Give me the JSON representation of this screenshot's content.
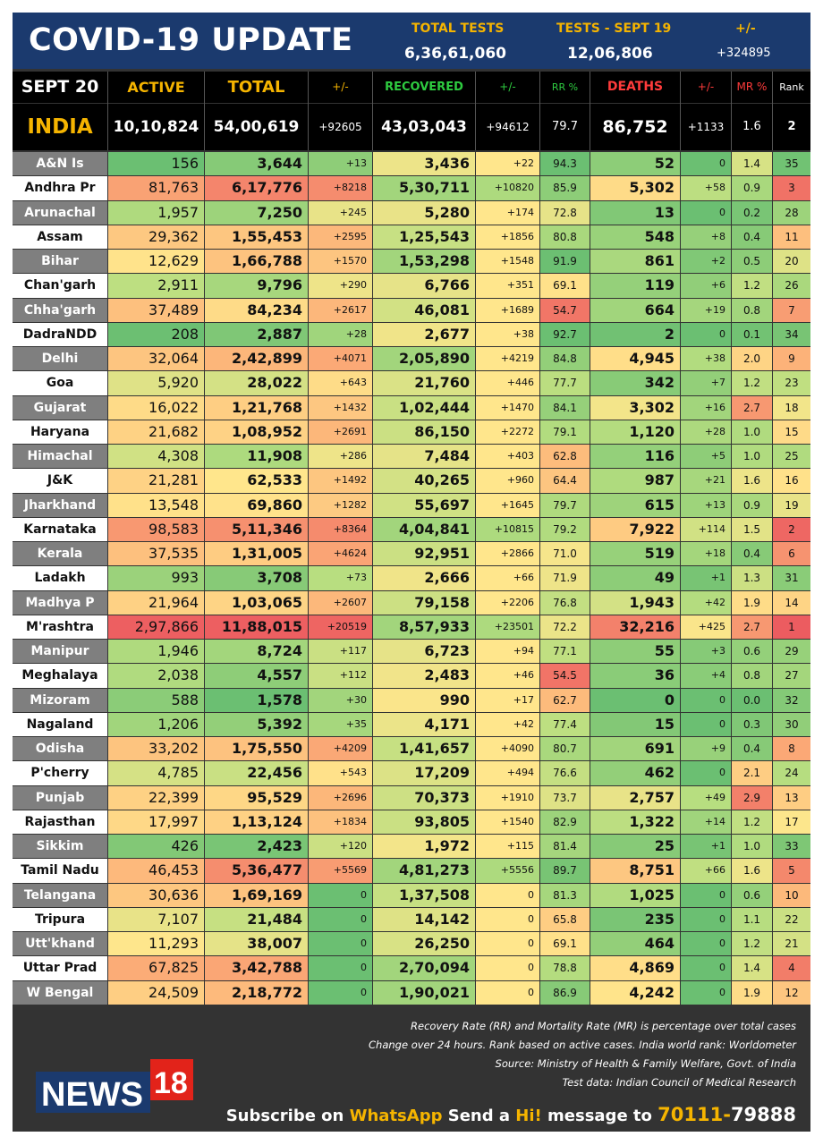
{
  "header": {
    "title": "COVID-19 UPDATE",
    "total_tests_label": "TOTAL TESTS",
    "total_tests_value": "6,36,61,060",
    "tests_day_label": "TESTS - SEPT 19",
    "tests_day_value": "12,06,806",
    "change_label": "+/-",
    "change_value": "+324895"
  },
  "columns": {
    "date": "SEPT 20",
    "active": "ACTIVE",
    "total": "TOTAL",
    "total_change": "+/-",
    "recovered": "RECOVERED",
    "recovered_change": "+/-",
    "rr": "RR %",
    "deaths": "DEATHS",
    "deaths_change": "+/-",
    "mr": "MR %",
    "rank": "Rank"
  },
  "india": {
    "name": "INDIA",
    "active": "10,10,824",
    "total": "54,00,619",
    "total_change": "+92605",
    "recovered": "43,03,043",
    "recovered_change": "+94612",
    "rr": "79.7",
    "deaths": "86,752",
    "deaths_change": "+1133",
    "mr": "1.6",
    "rank": "2"
  },
  "colors": {
    "header_bg": "#1b3a6e",
    "accent_yellow": "#f5b400",
    "green_text": "#2ecc40",
    "red_text": "#ff3b3b",
    "footer_bg": "#333333"
  },
  "states": [
    [
      "A&N Is",
      "156",
      "3,644",
      "+13",
      "3,436",
      "+22",
      "94.3",
      "52",
      "0",
      "1.4",
      "35"
    ],
    [
      "Andhra Pr",
      "81,763",
      "6,17,776",
      "+8218",
      "5,30,711",
      "+10820",
      "85.9",
      "5,302",
      "+58",
      "0.9",
      "3"
    ],
    [
      "Arunachal",
      "1,957",
      "7,250",
      "+245",
      "5,280",
      "+174",
      "72.8",
      "13",
      "0",
      "0.2",
      "28"
    ],
    [
      "Assam",
      "29,362",
      "1,55,453",
      "+2595",
      "1,25,543",
      "+1856",
      "80.8",
      "548",
      "+8",
      "0.4",
      "11"
    ],
    [
      "Bihar",
      "12,629",
      "1,66,788",
      "+1570",
      "1,53,298",
      "+1548",
      "91.9",
      "861",
      "+2",
      "0.5",
      "20"
    ],
    [
      "Chan'garh",
      "2,911",
      "9,796",
      "+290",
      "6,766",
      "+351",
      "69.1",
      "119",
      "+6",
      "1.2",
      "26"
    ],
    [
      "Chha'garh",
      "37,489",
      "84,234",
      "+2617",
      "46,081",
      "+1689",
      "54.7",
      "664",
      "+19",
      "0.8",
      "7"
    ],
    [
      "DadraNDD",
      "208",
      "2,887",
      "+28",
      "2,677",
      "+38",
      "92.7",
      "2",
      "0",
      "0.1",
      "34"
    ],
    [
      "Delhi",
      "32,064",
      "2,42,899",
      "+4071",
      "2,05,890",
      "+4219",
      "84.8",
      "4,945",
      "+38",
      "2.0",
      "9"
    ],
    [
      "Goa",
      "5,920",
      "28,022",
      "+643",
      "21,760",
      "+446",
      "77.7",
      "342",
      "+7",
      "1.2",
      "23"
    ],
    [
      "Gujarat",
      "16,022",
      "1,21,768",
      "+1432",
      "1,02,444",
      "+1470",
      "84.1",
      "3,302",
      "+16",
      "2.7",
      "18"
    ],
    [
      "Haryana",
      "21,682",
      "1,08,952",
      "+2691",
      "86,150",
      "+2272",
      "79.1",
      "1,120",
      "+28",
      "1.0",
      "15"
    ],
    [
      "Himachal",
      "4,308",
      "11,908",
      "+286",
      "7,484",
      "+403",
      "62.8",
      "116",
      "+5",
      "1.0",
      "25"
    ],
    [
      "J&K",
      "21,281",
      "62,533",
      "+1492",
      "40,265",
      "+960",
      "64.4",
      "987",
      "+21",
      "1.6",
      "16"
    ],
    [
      "Jharkhand",
      "13,548",
      "69,860",
      "+1282",
      "55,697",
      "+1645",
      "79.7",
      "615",
      "+13",
      "0.9",
      "19"
    ],
    [
      "Karnataka",
      "98,583",
      "5,11,346",
      "+8364",
      "4,04,841",
      "+10815",
      "79.2",
      "7,922",
      "+114",
      "1.5",
      "2"
    ],
    [
      "Kerala",
      "37,535",
      "1,31,005",
      "+4624",
      "92,951",
      "+2866",
      "71.0",
      "519",
      "+18",
      "0.4",
      "6"
    ],
    [
      "Ladakh",
      "993",
      "3,708",
      "+73",
      "2,666",
      "+66",
      "71.9",
      "49",
      "+1",
      "1.3",
      "31"
    ],
    [
      "Madhya P",
      "21,964",
      "1,03,065",
      "+2607",
      "79,158",
      "+2206",
      "76.8",
      "1,943",
      "+42",
      "1.9",
      "14"
    ],
    [
      "M'rashtra",
      "2,97,866",
      "11,88,015",
      "+20519",
      "8,57,933",
      "+23501",
      "72.2",
      "32,216",
      "+425",
      "2.7",
      "1"
    ],
    [
      "Manipur",
      "1,946",
      "8,724",
      "+117",
      "6,723",
      "+94",
      "77.1",
      "55",
      "+3",
      "0.6",
      "29"
    ],
    [
      "Meghalaya",
      "2,038",
      "4,557",
      "+112",
      "2,483",
      "+46",
      "54.5",
      "36",
      "+4",
      "0.8",
      "27"
    ],
    [
      "Mizoram",
      "588",
      "1,578",
      "+30",
      "990",
      "+17",
      "62.7",
      "0",
      "0",
      "0.0",
      "32"
    ],
    [
      "Nagaland",
      "1,206",
      "5,392",
      "+35",
      "4,171",
      "+42",
      "77.4",
      "15",
      "0",
      "0.3",
      "30"
    ],
    [
      "Odisha",
      "33,202",
      "1,75,550",
      "+4209",
      "1,41,657",
      "+4090",
      "80.7",
      "691",
      "+9",
      "0.4",
      "8"
    ],
    [
      "P'cherry",
      "4,785",
      "22,456",
      "+543",
      "17,209",
      "+494",
      "76.6",
      "462",
      "0",
      "2.1",
      "24"
    ],
    [
      "Punjab",
      "22,399",
      "95,529",
      "+2696",
      "70,373",
      "+1910",
      "73.7",
      "2,757",
      "+49",
      "2.9",
      "13"
    ],
    [
      "Rajasthan",
      "17,997",
      "1,13,124",
      "+1834",
      "93,805",
      "+1540",
      "82.9",
      "1,322",
      "+14",
      "1.2",
      "17"
    ],
    [
      "Sikkim",
      "426",
      "2,423",
      "+120",
      "1,972",
      "+115",
      "81.4",
      "25",
      "+1",
      "1.0",
      "33"
    ],
    [
      "Tamil Nadu",
      "46,453",
      "5,36,477",
      "+5569",
      "4,81,273",
      "+5556",
      "89.7",
      "8,751",
      "+66",
      "1.6",
      "5"
    ],
    [
      "Telangana",
      "30,636",
      "1,69,169",
      "0",
      "1,37,508",
      "0",
      "81.3",
      "1,025",
      "0",
      "0.6",
      "10"
    ],
    [
      "Tripura",
      "7,107",
      "21,484",
      "0",
      "14,142",
      "0",
      "65.8",
      "235",
      "0",
      "1.1",
      "22"
    ],
    [
      "Utt'khand",
      "11,293",
      "38,007",
      "0",
      "26,250",
      "0",
      "69.1",
      "464",
      "0",
      "1.2",
      "21"
    ],
    [
      "Uttar Prad",
      "67,825",
      "3,42,788",
      "0",
      "2,70,094",
      "0",
      "78.8",
      "4,869",
      "0",
      "1.4",
      "4"
    ],
    [
      "W Bengal",
      "24,509",
      "2,18,772",
      "0",
      "1,90,021",
      "0",
      "86.9",
      "4,242",
      "0",
      "1.9",
      "12"
    ]
  ],
  "footer": {
    "note1": "Recovery Rate (RR) and Mortality Rate (MR) is percentage over total cases",
    "note2": "Change over 24 hours. Rank based on active cases. India world rank: Worldometer",
    "note3": "Source: Ministry of Health & Family Welfare, Govt. of India",
    "note4": "Test data: Indian Council of Medical Research",
    "logo_text": "NEWS",
    "logo_num": "18",
    "sub_1": "Subscribe on ",
    "sub_whatsapp": "WhatsApp",
    "sub_2": " Send a ",
    "sub_hi": "Hi!",
    "sub_3": " message to ",
    "sub_num1": "70111-",
    "sub_num2": "79888"
  }
}
